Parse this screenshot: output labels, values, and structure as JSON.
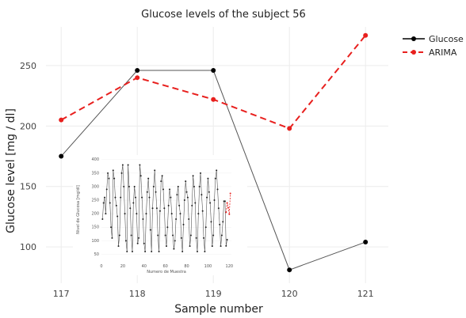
{
  "chart_data": [
    {
      "type": "line",
      "title": "Glucose levels of the subject 56",
      "xlabel": "Sample number",
      "ylabel": "Glucose level [mg / dl]",
      "x": [
        117,
        118,
        119,
        120,
        121
      ],
      "xlim": [
        116.8,
        121.3
      ],
      "ylim": [
        70,
        282
      ],
      "x_ticks": [
        "117",
        "118",
        "119",
        "120",
        "121"
      ],
      "y_ticks": [
        100,
        150,
        200,
        250
      ],
      "grid": true,
      "legend_position": "top-right",
      "series": [
        {
          "name": "Glucose",
          "color": "#000000",
          "line_color": "#555555",
          "style": "solid",
          "values": [
            175,
            246,
            246,
            81,
            104
          ]
        },
        {
          "name": "ARIMA",
          "color": "#e8201e",
          "style": "dashed",
          "values": [
            205,
            240,
            222,
            198,
            275
          ]
        }
      ]
    },
    {
      "type": "line",
      "xlabel": "Numero de Muestra",
      "ylabel": "Nivel de Glucosa [mg/dl]",
      "xlim": [
        0,
        122
      ],
      "ylim": [
        25,
        405
      ],
      "x_ticks": [
        0,
        20,
        40,
        60,
        80,
        100,
        120
      ],
      "y_ticks": [
        50,
        100,
        150,
        200,
        250,
        300,
        350,
        400
      ],
      "series": [
        {
          "name": "Glucose",
          "color": "#222222",
          "values": [
            180,
            240,
            260,
            200,
            290,
            350,
            330,
            240,
            150,
            110,
            360,
            330,
            260,
            230,
            190,
            80,
            120,
            260,
            350,
            380,
            300,
            200,
            100,
            60,
            380,
            300,
            220,
            120,
            60,
            240,
            300,
            260,
            200,
            90,
            110,
            380,
            340,
            260,
            180,
            90,
            60,
            200,
            280,
            330,
            260,
            140,
            60,
            220,
            300,
            360,
            280,
            220,
            120,
            60,
            210,
            320,
            340,
            290,
            220,
            120,
            80,
            150,
            230,
            290,
            260,
            200,
            120,
            70,
            100,
            180,
            270,
            300,
            230,
            200,
            110,
            60,
            160,
            250,
            320,
            280,
            260,
            180,
            80,
            120,
            230,
            340,
            300,
            240,
            110,
            60,
            200,
            300,
            350,
            270,
            210,
            110,
            60,
            150,
            260,
            330,
            280,
            240,
            170,
            80,
            120,
            250,
            330,
            360,
            290,
            220,
            160,
            80,
            120,
            170,
            246,
            246,
            81,
            104
          ]
        },
        {
          "name": "ARIMA",
          "color": "#e8201e",
          "values": [
            205,
            240,
            222,
            198,
            275
          ],
          "x_start": 117
        }
      ]
    }
  ]
}
